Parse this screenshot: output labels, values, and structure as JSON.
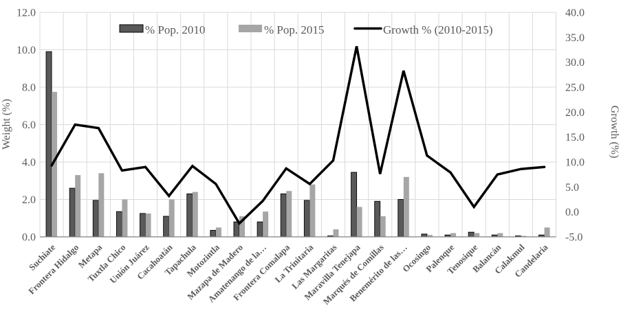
{
  "chart_data": {
    "type": "combo-bar-line",
    "title": "",
    "categories": [
      "Suchiate",
      "Frontera Hidalgo",
      "Metapa",
      "Tuxtla Chico",
      "Unión Juárez",
      "Cacahoatán",
      "Tapachula",
      "Motozintla",
      "Mazapa de Madero",
      "Amatenango de la…",
      "Frontera Comalapa",
      "La Trinitaria",
      "Las Margaritas",
      "Maravilla Tenejapa",
      "Marqués de Comillas",
      "Benemérito de las…",
      "Ocosingo",
      "Palenque",
      "Tenosique",
      "Balancán",
      "Calakmul",
      "Candelaria"
    ],
    "series": [
      {
        "name": "% Pop. 2010",
        "type": "bar",
        "axis": "left",
        "color": "#595959",
        "border_color": "#000000",
        "values": [
          9.9,
          2.6,
          1.95,
          1.35,
          1.25,
          1.1,
          2.3,
          0.35,
          0.8,
          0.8,
          2.3,
          1.95,
          0.05,
          3.45,
          1.9,
          2.0,
          0.15,
          0.1,
          0.25,
          0.1,
          0.05,
          0.1
        ]
      },
      {
        "name": "% Pop. 2015",
        "type": "bar",
        "axis": "left",
        "color": "#a6a6a6",
        "border_color": "none",
        "values": [
          7.75,
          3.3,
          3.4,
          2.0,
          1.25,
          2.0,
          2.4,
          0.5,
          1.1,
          1.35,
          2.45,
          2.8,
          0.4,
          1.6,
          1.1,
          3.2,
          0.1,
          0.2,
          0.2,
          0.2,
          0.05,
          0.5
        ]
      },
      {
        "name": "Growth % (2010-2015)",
        "type": "line",
        "axis": "right",
        "color": "#000000",
        "stroke_width": 3.5,
        "values": [
          9.3,
          17.5,
          16.8,
          8.3,
          9.0,
          3.2,
          9.2,
          5.6,
          -2.3,
          2.2,
          8.7,
          5.6,
          10.3,
          33.2,
          7.6,
          28.3,
          11.3,
          7.9,
          1.0,
          7.5,
          8.6,
          9.0
        ]
      }
    ],
    "left_axis": {
      "label": "Weight (%)",
      "min": 0,
      "max": 12,
      "step": 2,
      "tick_labels": [
        "0.0",
        "2.0",
        "4.0",
        "6.0",
        "8.0",
        "10.0",
        "12.0"
      ]
    },
    "right_axis": {
      "label": "Growth (%)",
      "min": -5,
      "max": 40,
      "step": 5,
      "tick_labels": [
        "-5.0",
        "0.0",
        "5.0",
        "10.0",
        "15.0",
        "20.0",
        "25.0",
        "30.0",
        "35.0",
        "40.0"
      ]
    },
    "grid": true,
    "legend_position": "top-inside",
    "x_label_rotation_deg": 45
  },
  "colors": {
    "background": "#ffffff",
    "gridline": "#d9d9d9",
    "axis_line": "#808080",
    "tick_text": "#595959"
  }
}
